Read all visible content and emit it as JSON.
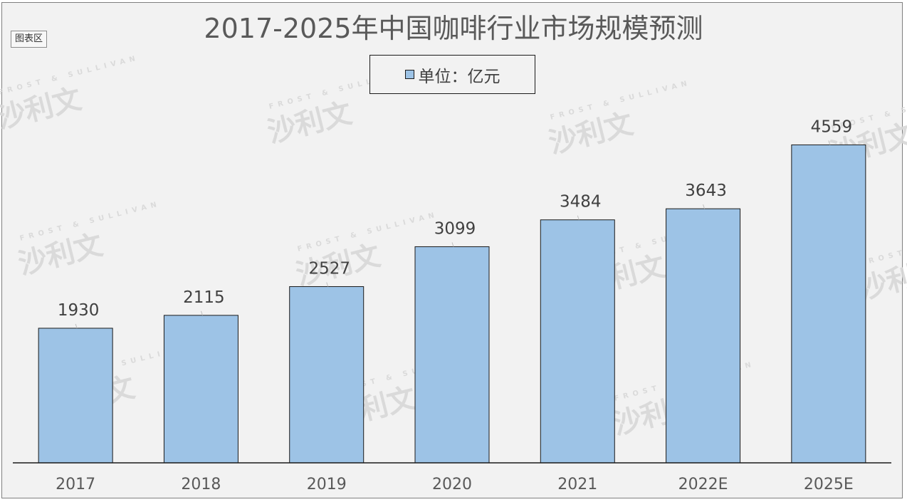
{
  "chart_area_tag": "图表区",
  "watermark_cn": "沙利文",
  "watermark_en": "FROST & SULLIVAN",
  "chart_data": {
    "type": "bar",
    "title": "2017-2025年中国咖啡行业市场规模预测",
    "categories": [
      "2017",
      "2018",
      "2019",
      "2020",
      "2021",
      "2022E",
      "2025E"
    ],
    "series": [
      {
        "name": "单位：亿元",
        "values": [
          1930,
          2115,
          2527,
          3099,
          3484,
          3643,
          4559
        ]
      }
    ],
    "ylim": [
      0,
      4800
    ],
    "bar_color": "#9dc3e6",
    "bar_edge": "#1a1a1a",
    "grid": false,
    "legend": "top-center",
    "data_labels": true
  }
}
